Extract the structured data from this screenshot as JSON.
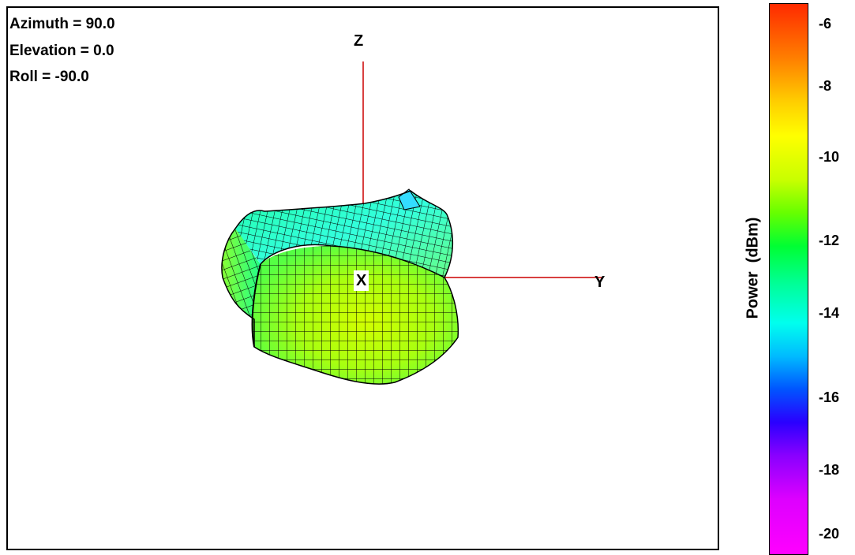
{
  "view": {
    "azimuth": "Azimuth = 90.0",
    "elevation": "Elevation = 0.0",
    "roll": "Roll = -90.0"
  },
  "axes": {
    "x_label": "X",
    "y_label": "Y",
    "z_label": "Z"
  },
  "colorbar": {
    "label": "Power  (dBm)",
    "ticks": [
      "-6",
      "-8",
      "-10",
      "-12",
      "-14",
      "-16",
      "-18",
      "-20"
    ]
  },
  "colors": {
    "axis": "#cc0000",
    "mesh_line": "#000000"
  }
}
